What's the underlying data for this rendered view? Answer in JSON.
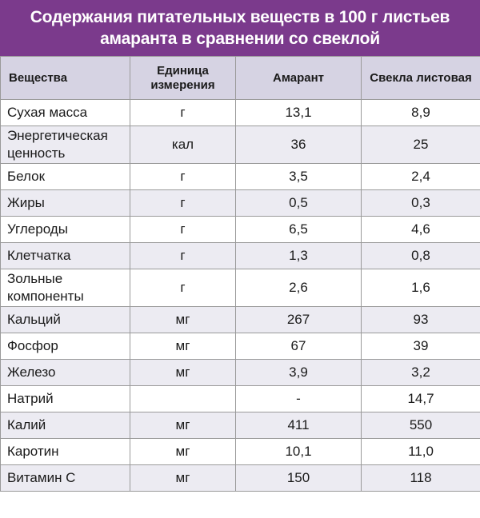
{
  "title": {
    "line1": "Содержания питательных веществ в 100 г листьев",
    "line2": "амаранта в сравнении со свеклой"
  },
  "headers": [
    "Вещества",
    "Единица измерения",
    "Амарант",
    "Свекла листовая"
  ],
  "rows": [
    {
      "name": "Сухая масса",
      "unit": "г",
      "amaranth": "13,1",
      "beet": "8,9"
    },
    {
      "name": "Энергетическая ценность",
      "unit": "кал",
      "amaranth": "36",
      "beet": "25"
    },
    {
      "name": "Белок",
      "unit": "г",
      "amaranth": "3,5",
      "beet": "2,4"
    },
    {
      "name": "Жиры",
      "unit": "г",
      "amaranth": "0,5",
      "beet": "0,3"
    },
    {
      "name": "Углероды",
      "unit": "г",
      "amaranth": "6,5",
      "beet": "4,6"
    },
    {
      "name": "Клетчатка",
      "unit": "г",
      "amaranth": "1,3",
      "beet": "0,8"
    },
    {
      "name": "Зольные компоненты",
      "unit": "г",
      "amaranth": "2,6",
      "beet": "1,6"
    },
    {
      "name": "Кальций",
      "unit": "мг",
      "amaranth": "267",
      "beet": "93"
    },
    {
      "name": "Фосфор",
      "unit": "мг",
      "amaranth": "67",
      "beet": "39"
    },
    {
      "name": "Железо",
      "unit": "мг",
      "amaranth": "3,9",
      "beet": "3,2"
    },
    {
      "name": "Натрий",
      "unit": "",
      "amaranth": "-",
      "beet": "14,7"
    },
    {
      "name": "Калий",
      "unit": "мг",
      "amaranth": "411",
      "beet": "550"
    },
    {
      "name": "Каротин",
      "unit": "мг",
      "amaranth": "10,1",
      "beet": "11,0"
    },
    {
      "name": "Витамин С",
      "unit": "мг",
      "amaranth": "150",
      "beet": "118"
    }
  ]
}
